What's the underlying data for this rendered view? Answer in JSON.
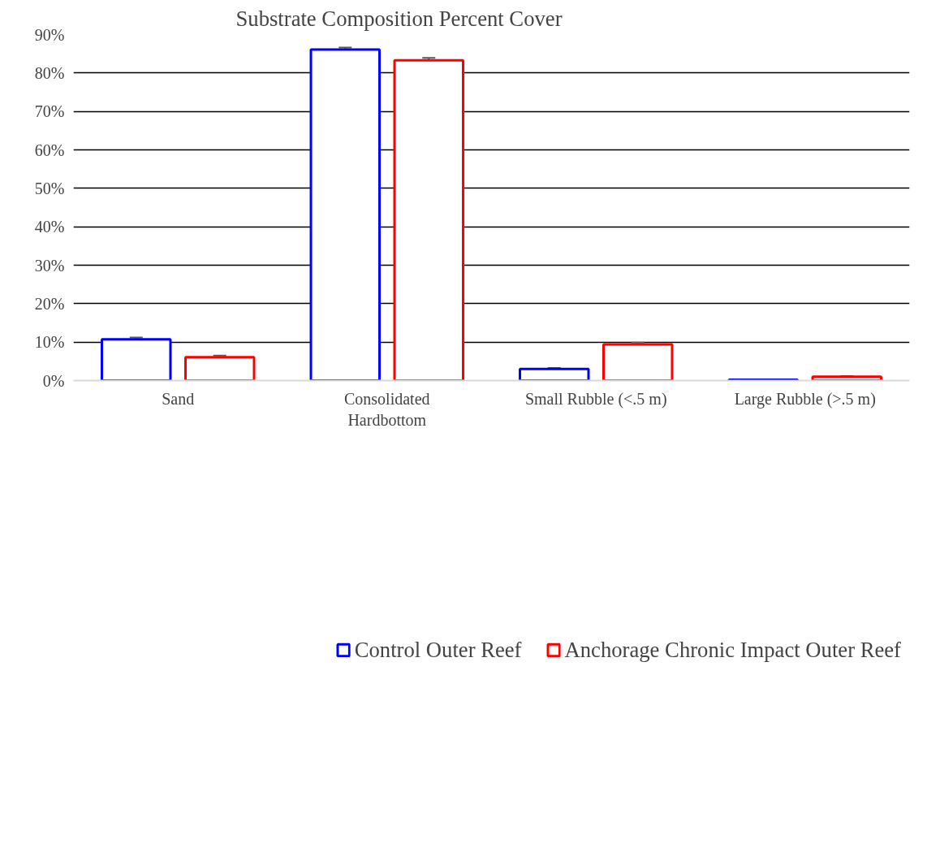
{
  "chart_data": {
    "type": "bar",
    "title": "Substrate Composition Percent Cover",
    "categories": [
      "Sand",
      "Consolidated\nHardbottom",
      "Small Rubble (<.5 m)",
      "Large Rubble (>.5 m)"
    ],
    "series": [
      {
        "name": "Control Outer Reef",
        "color": "#0000ff",
        "values": [
          10.7,
          86.1,
          3.0,
          0.2
        ],
        "errors": [
          0.5,
          0.5,
          0.25,
          0.05
        ]
      },
      {
        "name": "Anchorage Chronic Impact Outer Reef",
        "color": "#ff0000",
        "values": [
          6.1,
          83.3,
          9.4,
          1.0
        ],
        "errors": [
          0.4,
          0.6,
          0.5,
          0.15
        ]
      }
    ],
    "ylim": [
      0,
      90
    ],
    "yticks": [
      {
        "value": 0,
        "label": "0%"
      },
      {
        "value": 10,
        "label": "10%"
      },
      {
        "value": 20,
        "label": "20%"
      },
      {
        "value": 30,
        "label": "30%"
      },
      {
        "value": 40,
        "label": "40%"
      },
      {
        "value": 50,
        "label": "50%"
      },
      {
        "value": 60,
        "label": "60%"
      },
      {
        "value": 70,
        "label": "70%"
      },
      {
        "value": 80,
        "label": "80%"
      },
      {
        "value": 90,
        "label": "90%"
      }
    ],
    "grid": "y",
    "legend": "bottom"
  }
}
